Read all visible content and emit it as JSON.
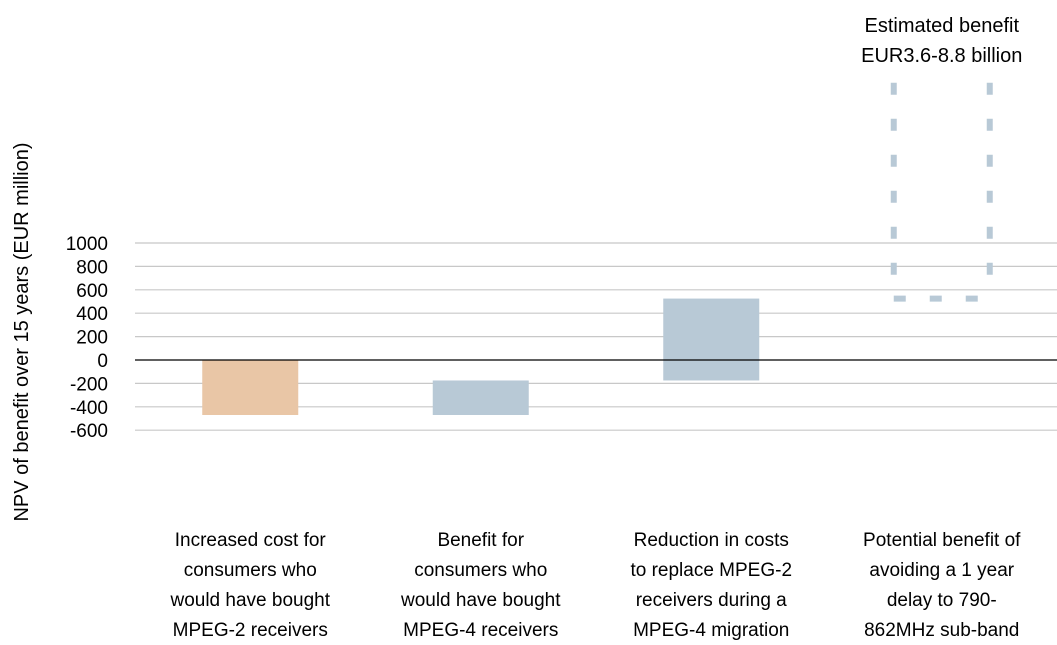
{
  "chart_data": {
    "type": "bar",
    "subtype": "floating-waterfall",
    "title": "",
    "xlabel": "",
    "ylabel": "NPV of benefit over 15 years (EUR million)",
    "ylim": [
      -600,
      1100
    ],
    "yticks": [
      1000,
      800,
      600,
      400,
      200,
      0,
      -200,
      -400,
      -600
    ],
    "ytick_labels": [
      "1000",
      "800",
      "600",
      "400",
      "200",
      "0",
      "-200",
      "-400",
      "-600"
    ],
    "grid": true,
    "categories": [
      [
        "Increased cost for",
        "consumers who",
        "would have bought",
        "MPEG-2 receivers"
      ],
      [
        "Benefit for",
        "consumers who",
        "would have bought",
        "MPEG-4 receivers"
      ],
      [
        "Reduction in costs",
        "to replace MPEG-2",
        "receivers during a",
        "MPEG-4 migration"
      ],
      [
        "Potential benefit of",
        "avoiding a 1 year",
        "delay to 790-",
        "862MHz sub-band"
      ]
    ],
    "bars": [
      {
        "start": 0,
        "end": -470,
        "color": "#e9c6a6",
        "style": "solid"
      },
      {
        "start": -470,
        "end": -175,
        "color": "#b8c9d6",
        "style": "solid"
      },
      {
        "start": -175,
        "end": 525,
        "color": "#b8c9d6",
        "style": "solid"
      },
      {
        "start": 525,
        "end": 3600,
        "color": "#b8c9d6",
        "style": "dashed-outline"
      }
    ],
    "annotation": [
      "Estimated benefit",
      "EUR3.6-8.8 billion"
    ]
  }
}
